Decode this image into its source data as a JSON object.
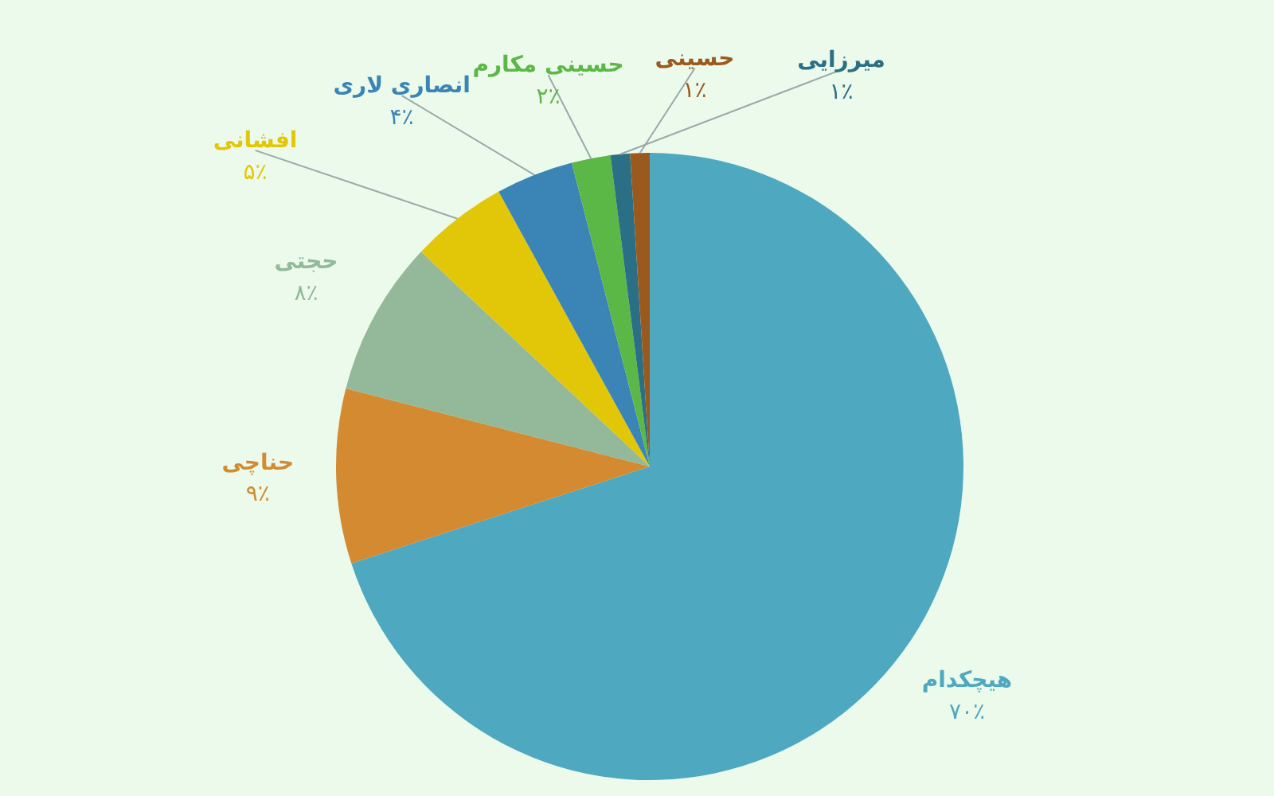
{
  "chart_data": {
    "type": "pie",
    "categories": [
      "هیچکدام",
      "حناچی",
      "حجتی",
      "افشانی",
      "انصاری لاری",
      "حسینی مکارم",
      "میرزایی",
      "حسینی"
    ],
    "values": [
      70,
      9,
      8,
      5,
      4,
      2,
      1,
      1
    ],
    "value_labels": [
      "۷۰٪",
      "۹٪",
      "۸٪",
      "۵٪",
      "۴٪",
      "۲٪",
      "۱٪",
      "۱٪"
    ],
    "colors": [
      "#4ea8c0",
      "#d38a30",
      "#93b89a",
      "#e2c708",
      "#3a85b5",
      "#5cb846",
      "#2a6f86",
      "#9a5a1e"
    ]
  }
}
